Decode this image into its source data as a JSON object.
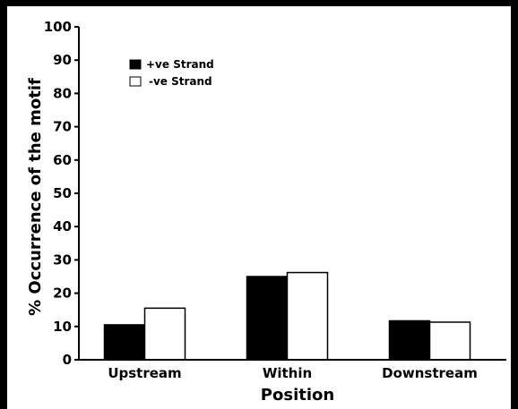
{
  "chart_data": {
    "type": "bar",
    "title": "",
    "xlabel": "Position",
    "ylabel": "% Occurrence of the motif",
    "categories": [
      "Upstream",
      "Within",
      "Downstream"
    ],
    "series": [
      {
        "name": "+ve Strand",
        "values": [
          10.5,
          25,
          11.7
        ],
        "color": "#000000"
      },
      {
        "name": "-ve Strand",
        "values": [
          15.5,
          26.2,
          11.3
        ],
        "color": "#ffffff"
      }
    ],
    "ylim": [
      0,
      100
    ],
    "yticks": [
      0,
      10,
      20,
      30,
      40,
      50,
      60,
      70,
      80,
      90,
      100
    ],
    "grid": false,
    "legend_position": "top-left"
  }
}
